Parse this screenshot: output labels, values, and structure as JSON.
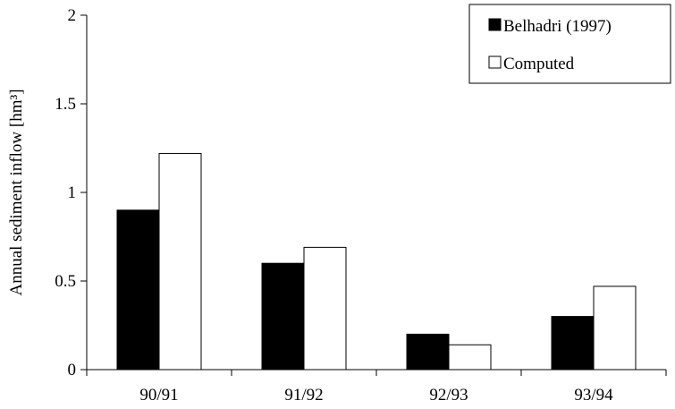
{
  "chart_data": {
    "type": "bar",
    "categories": [
      "90/91",
      "91/92",
      "92/93",
      "93/94"
    ],
    "series": [
      {
        "name": "Belhadri (1997)",
        "values": [
          0.9,
          0.6,
          0.2,
          0.3
        ],
        "color": "#000000"
      },
      {
        "name": "Computed",
        "values": [
          1.22,
          0.69,
          0.14,
          0.47
        ],
        "color": "#ffffff"
      }
    ],
    "ylabel": "Annual sediment inflow [hm³]",
    "ylim": [
      0,
      2
    ],
    "yticks": [
      0,
      0.5,
      1,
      1.5,
      2
    ],
    "ytick_labels": [
      "0",
      "0.5",
      "1",
      "1.5",
      "2"
    ],
    "grid": false,
    "legend_position": "top-right"
  }
}
